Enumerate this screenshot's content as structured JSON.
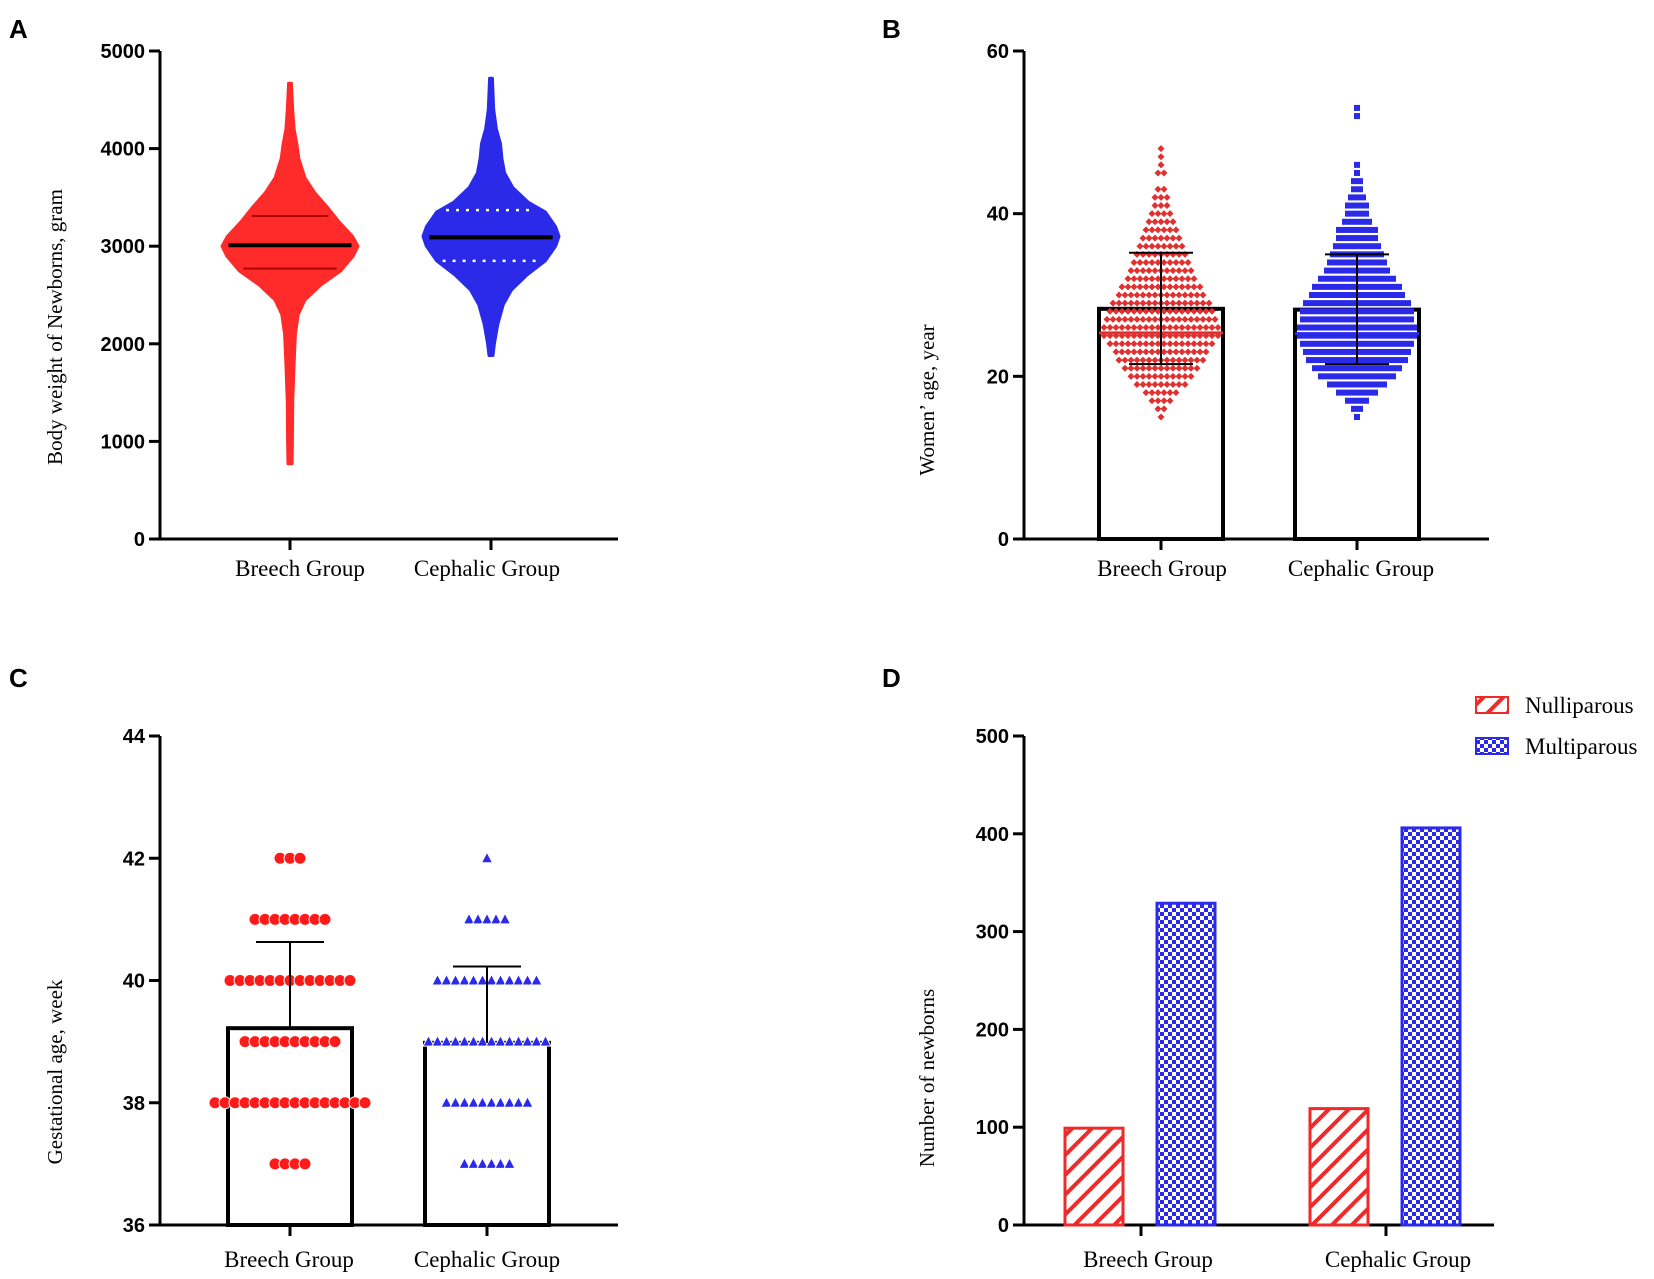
{
  "chart_data": [
    {
      "panel": "A",
      "type": "violin",
      "title": "",
      "xlabel": "",
      "ylabel": "Body weight of Newborns, gram",
      "ylim": [
        0,
        5000
      ],
      "yticks": [
        0,
        1000,
        2000,
        3000,
        4000,
        5000
      ],
      "categories": [
        "Breech Group",
        "Cephalic Group"
      ],
      "colors": [
        "#ff2a2a",
        "#2a2ae8"
      ],
      "series": [
        {
          "name": "Breech Group",
          "min": 770,
          "max": 4670,
          "median": 3010,
          "q1": 2770,
          "q3": 3310,
          "profile": [
            [
              770,
              0.03
            ],
            [
              1000,
              0.035
            ],
            [
              1400,
              0.04
            ],
            [
              1800,
              0.06
            ],
            [
              2100,
              0.08
            ],
            [
              2300,
              0.12
            ],
            [
              2450,
              0.22
            ],
            [
              2600,
              0.45
            ],
            [
              2750,
              0.75
            ],
            [
              2900,
              0.93
            ],
            [
              3000,
              1.0
            ],
            [
              3100,
              0.92
            ],
            [
              3250,
              0.72
            ],
            [
              3400,
              0.55
            ],
            [
              3550,
              0.36
            ],
            [
              3700,
              0.22
            ],
            [
              3900,
              0.13
            ],
            [
              4050,
              0.1
            ],
            [
              4200,
              0.06
            ],
            [
              4400,
              0.04
            ],
            [
              4670,
              0.02
            ]
          ]
        },
        {
          "name": "Cephalic Group",
          "min": 1880,
          "max": 4720,
          "median": 3090,
          "q1": 2850,
          "q3": 3370,
          "profile": [
            [
              1880,
              0.03
            ],
            [
              2000,
              0.05
            ],
            [
              2200,
              0.1
            ],
            [
              2400,
              0.18
            ],
            [
              2550,
              0.3
            ],
            [
              2700,
              0.52
            ],
            [
              2850,
              0.8
            ],
            [
              3000,
              0.95
            ],
            [
              3100,
              1.0
            ],
            [
              3200,
              0.95
            ],
            [
              3350,
              0.8
            ],
            [
              3450,
              0.55
            ],
            [
              3600,
              0.32
            ],
            [
              3750,
              0.2
            ],
            [
              3900,
              0.16
            ],
            [
              4050,
              0.14
            ],
            [
              4200,
              0.08
            ],
            [
              4400,
              0.04
            ],
            [
              4720,
              0.02
            ]
          ]
        }
      ]
    },
    {
      "panel": "B",
      "type": "bar",
      "title": "",
      "xlabel": "",
      "ylabel": "Women’ age, year",
      "ylim": [
        0,
        60
      ],
      "yticks": [
        0,
        20,
        40,
        60
      ],
      "categories": [
        "Breech Group",
        "Cephalic Group"
      ],
      "values": [
        28.3,
        28.2
      ],
      "error_low": [
        21.5,
        21.5
      ],
      "error_high": [
        35.2,
        35.0
      ],
      "dot_colors": [
        "#e03030",
        "#2a2ae8"
      ],
      "dot_markers": [
        "diamond",
        "square"
      ],
      "dot_distribution": [
        {
          "name": "Breech Group",
          "counts": [
            [
              15,
              1
            ],
            [
              16,
              2
            ],
            [
              17,
              4
            ],
            [
              18,
              6
            ],
            [
              19,
              9
            ],
            [
              20,
              11
            ],
            [
              21,
              13
            ],
            [
              22,
              15
            ],
            [
              23,
              16
            ],
            [
              24,
              18
            ],
            [
              25,
              20
            ],
            [
              26,
              20
            ],
            [
              27,
              19
            ],
            [
              28,
              18
            ],
            [
              29,
              17
            ],
            [
              30,
              15
            ],
            [
              31,
              14
            ],
            [
              32,
              12
            ],
            [
              33,
              11
            ],
            [
              34,
              10
            ],
            [
              35,
              9
            ],
            [
              36,
              8
            ],
            [
              37,
              7
            ],
            [
              38,
              6
            ],
            [
              39,
              5
            ],
            [
              40,
              4
            ],
            [
              41,
              3
            ],
            [
              42,
              3
            ],
            [
              43,
              2
            ],
            [
              45,
              2
            ],
            [
              46,
              1
            ],
            [
              47,
              1
            ],
            [
              48,
              1
            ]
          ]
        },
        {
          "name": "Cephalic Group",
          "counts": [
            [
              15,
              1
            ],
            [
              16,
              2
            ],
            [
              17,
              4
            ],
            [
              18,
              7
            ],
            [
              19,
              10
            ],
            [
              20,
              13
            ],
            [
              21,
              15
            ],
            [
              22,
              17
            ],
            [
              23,
              18
            ],
            [
              24,
              19
            ],
            [
              25,
              20
            ],
            [
              26,
              20
            ],
            [
              27,
              19
            ],
            [
              28,
              19
            ],
            [
              29,
              18
            ],
            [
              30,
              16
            ],
            [
              31,
              15
            ],
            [
              32,
              13
            ],
            [
              33,
              11
            ],
            [
              34,
              10
            ],
            [
              35,
              9
            ],
            [
              36,
              8
            ],
            [
              37,
              7
            ],
            [
              38,
              7
            ],
            [
              39,
              5
            ],
            [
              40,
              4
            ],
            [
              41,
              4
            ],
            [
              42,
              3
            ],
            [
              43,
              2
            ],
            [
              44,
              2
            ],
            [
              45,
              1
            ],
            [
              46,
              1
            ],
            [
              52,
              1
            ],
            [
              53,
              1
            ]
          ]
        }
      ]
    },
    {
      "panel": "C",
      "type": "bar",
      "title": "",
      "xlabel": "",
      "ylabel": "Gestational age, week",
      "ylim": [
        36,
        44
      ],
      "yticks": [
        36,
        38,
        40,
        42,
        44
      ],
      "categories": [
        "Breech Group",
        "Cephalic Group"
      ],
      "values": [
        39.22,
        38.98
      ],
      "error_high": [
        40.63,
        40.23
      ],
      "dot_colors": [
        "#ff1a1a",
        "#2a2ae8"
      ],
      "dot_markers": [
        "circle",
        "triangle"
      ],
      "dot_distribution": [
        {
          "name": "Breech Group",
          "counts": [
            [
              37,
              4
            ],
            [
              38,
              16
            ],
            [
              39,
              10
            ],
            [
              40,
              13
            ],
            [
              41,
              8
            ],
            [
              42,
              3
            ]
          ]
        },
        {
          "name": "Cephalic Group",
          "counts": [
            [
              37,
              6
            ],
            [
              38,
              10
            ],
            [
              39,
              14
            ],
            [
              40,
              12
            ],
            [
              41,
              5
            ],
            [
              42,
              1
            ]
          ]
        }
      ]
    },
    {
      "panel": "D",
      "type": "bar",
      "title": "",
      "xlabel": "",
      "ylabel": "Number of newborns",
      "ylim": [
        0,
        500
      ],
      "yticks": [
        0,
        100,
        200,
        300,
        400,
        500
      ],
      "categories": [
        "Breech Group",
        "Cephalic Group"
      ],
      "series": [
        {
          "name": "Nulliparous",
          "values": [
            99,
            119
          ],
          "color": "#ee2a2a",
          "pattern": "diagonal-hatch"
        },
        {
          "name": "Multiparous",
          "values": [
            329,
            406
          ],
          "color": "#2a2ae8",
          "pattern": "checker"
        }
      ],
      "legend_position": "top-right"
    }
  ]
}
